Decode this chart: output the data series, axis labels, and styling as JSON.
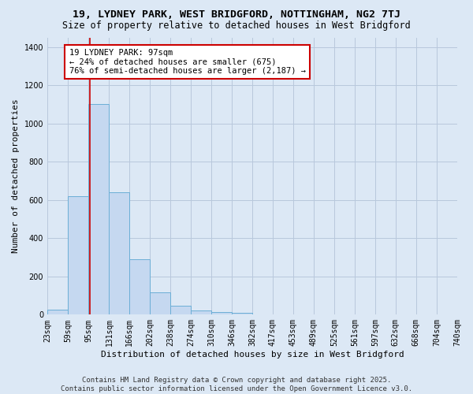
{
  "title_line1": "19, LYDNEY PARK, WEST BRIDGFORD, NOTTINGHAM, NG2 7TJ",
  "title_line2": "Size of property relative to detached houses in West Bridgford",
  "xlabel": "Distribution of detached houses by size in West Bridgford",
  "ylabel": "Number of detached properties",
  "bar_values": [
    27,
    620,
    1100,
    640,
    290,
    115,
    47,
    20,
    15,
    10,
    0,
    0,
    0,
    0,
    0,
    0,
    0,
    0,
    0,
    0
  ],
  "bin_edges": [
    23,
    59,
    95,
    131,
    166,
    202,
    238,
    274,
    310,
    346,
    382,
    417,
    453,
    489,
    525,
    561,
    597,
    632,
    668,
    704,
    740
  ],
  "bar_color": "#c5d8f0",
  "bar_edge_color": "#6baed6",
  "bg_color": "#dce8f5",
  "grid_color": "#b8c8dc",
  "vline_x": 97,
  "vline_color": "#cc0000",
  "annotation_text": "19 LYDNEY PARK: 97sqm\n← 24% of detached houses are smaller (675)\n76% of semi-detached houses are larger (2,187) →",
  "annotation_box_color": "#ffffff",
  "annotation_box_edge": "#cc0000",
  "ylim": [
    0,
    1450
  ],
  "yticks": [
    0,
    200,
    400,
    600,
    800,
    1000,
    1200,
    1400
  ],
  "tick_labels": [
    "23sqm",
    "59sqm",
    "95sqm",
    "131sqm",
    "166sqm",
    "202sqm",
    "238sqm",
    "274sqm",
    "310sqm",
    "346sqm",
    "382sqm",
    "417sqm",
    "453sqm",
    "489sqm",
    "525sqm",
    "561sqm",
    "597sqm",
    "632sqm",
    "668sqm",
    "704sqm",
    "740sqm"
  ],
  "footer_line1": "Contains HM Land Registry data © Crown copyright and database right 2025.",
  "footer_line2": "Contains public sector information licensed under the Open Government Licence v3.0.",
  "title_fontsize": 9.5,
  "subtitle_fontsize": 8.5,
  "axis_label_fontsize": 8,
  "tick_fontsize": 7,
  "annotation_fontsize": 7.5,
  "footer_fontsize": 6.5,
  "ylabel_fontsize": 8
}
